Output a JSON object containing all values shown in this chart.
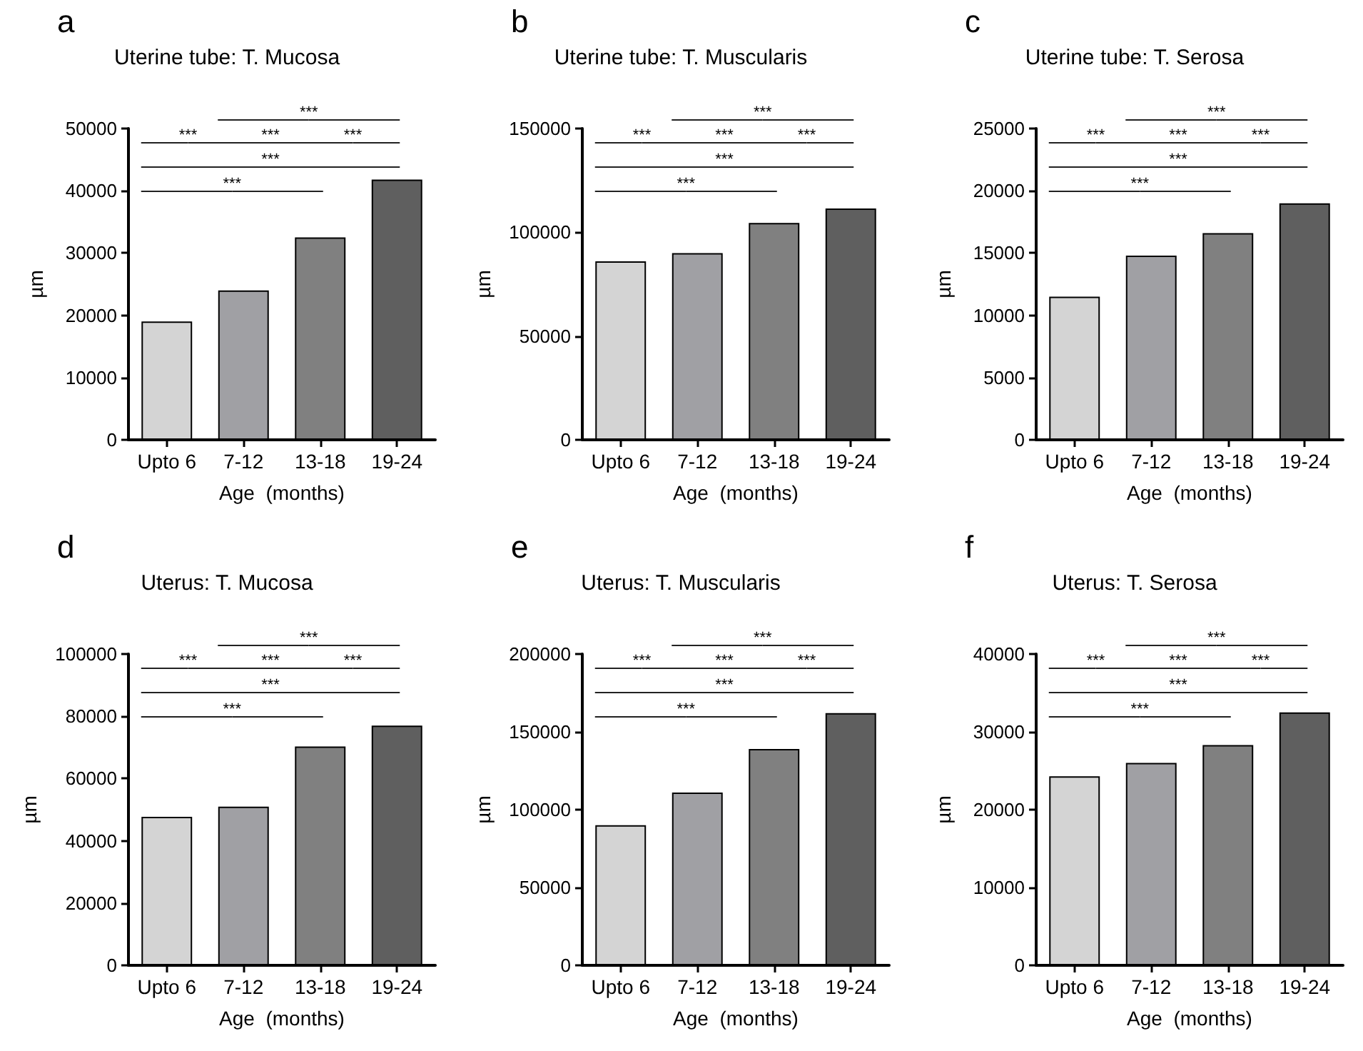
{
  "chart_data": [
    {
      "type": "bar",
      "title": "Uterine tube: T. Mucosa",
      "xlabel": "Age  (months)",
      "ylabel": "µm",
      "categories": [
        "Upto 6",
        "7-12",
        "13-18",
        "19-24"
      ],
      "values": [
        19000,
        24000,
        32500,
        41800
      ],
      "colors": [
        "#d4d4d4",
        "#a0a0a4",
        "#808080",
        "#5f5f5f"
      ],
      "ylim": [
        0,
        50000
      ],
      "yticks": [
        0,
        10000,
        20000,
        30000,
        40000,
        50000
      ],
      "annotations": [
        "a",
        "***",
        "***",
        "***",
        "***",
        "***",
        "***"
      ]
    },
    {
      "type": "bar",
      "title": "Uterine tube: T. Muscularis",
      "xlabel": "Age  (months)",
      "ylabel": "µm",
      "categories": [
        "Upto 6",
        "7-12",
        "13-18",
        "19-24"
      ],
      "values": [
        86000,
        90000,
        104500,
        111500
      ],
      "colors": [
        "#d4d4d4",
        "#a0a0a4",
        "#808080",
        "#5f5f5f"
      ],
      "ylim": [
        0,
        150000
      ],
      "yticks": [
        0,
        50000,
        100000,
        150000
      ],
      "annotations": [
        "b",
        "***",
        "***",
        "***",
        "***",
        "***",
        "***"
      ]
    },
    {
      "type": "bar",
      "title": "Uterine tube: T. Serosa",
      "xlabel": "Age  (months)",
      "ylabel": "µm",
      "categories": [
        "Upto 6",
        "7-12",
        "13-18",
        "19-24"
      ],
      "values": [
        11500,
        14800,
        16600,
        19000
      ],
      "colors": [
        "#d4d4d4",
        "#a0a0a4",
        "#808080",
        "#5f5f5f"
      ],
      "ylim": [
        0,
        25000
      ],
      "yticks": [
        0,
        5000,
        10000,
        15000,
        20000,
        25000
      ],
      "annotations": [
        "c",
        "***",
        "***",
        "***",
        "***",
        "***",
        "***"
      ]
    },
    {
      "type": "bar",
      "title": "Uterus: T. Mucosa",
      "xlabel": "Age  (months)",
      "ylabel": "µm",
      "categories": [
        "Upto 6",
        "7-12",
        "13-18",
        "19-24"
      ],
      "values": [
        47700,
        51000,
        70300,
        77000
      ],
      "colors": [
        "#d4d4d4",
        "#a0a0a4",
        "#808080",
        "#5f5f5f"
      ],
      "ylim": [
        0,
        100000
      ],
      "yticks": [
        0,
        20000,
        40000,
        60000,
        80000,
        100000
      ],
      "annotations": [
        "d",
        "***",
        "***",
        "***",
        "***",
        "***",
        "***"
      ]
    },
    {
      "type": "bar",
      "title": "Uterus: T. Muscularis",
      "xlabel": "Age  (months)",
      "ylabel": "µm",
      "categories": [
        "Upto 6",
        "7-12",
        "13-18",
        "19-24"
      ],
      "values": [
        90000,
        111000,
        139000,
        162000
      ],
      "colors": [
        "#d4d4d4",
        "#a0a0a4",
        "#808080",
        "#5f5f5f"
      ],
      "ylim": [
        0,
        200000
      ],
      "yticks": [
        0,
        50000,
        100000,
        150000,
        200000
      ],
      "annotations": [
        "e",
        "***",
        "***",
        "***",
        "***",
        "***",
        "***"
      ]
    },
    {
      "type": "bar",
      "title": "Uterus: T. Serosa",
      "xlabel": "Age  (months)",
      "ylabel": "µm",
      "categories": [
        "Upto 6",
        "7-12",
        "13-18",
        "19-24"
      ],
      "values": [
        24300,
        26000,
        28300,
        32500
      ],
      "colors": [
        "#d4d4d4",
        "#a0a0a4",
        "#808080",
        "#5f5f5f"
      ],
      "ylim": [
        0,
        40000
      ],
      "yticks": [
        0,
        10000,
        20000,
        30000,
        40000
      ],
      "annotations": [
        "f",
        "***",
        "***",
        "***",
        "***",
        "***",
        "***"
      ]
    }
  ]
}
